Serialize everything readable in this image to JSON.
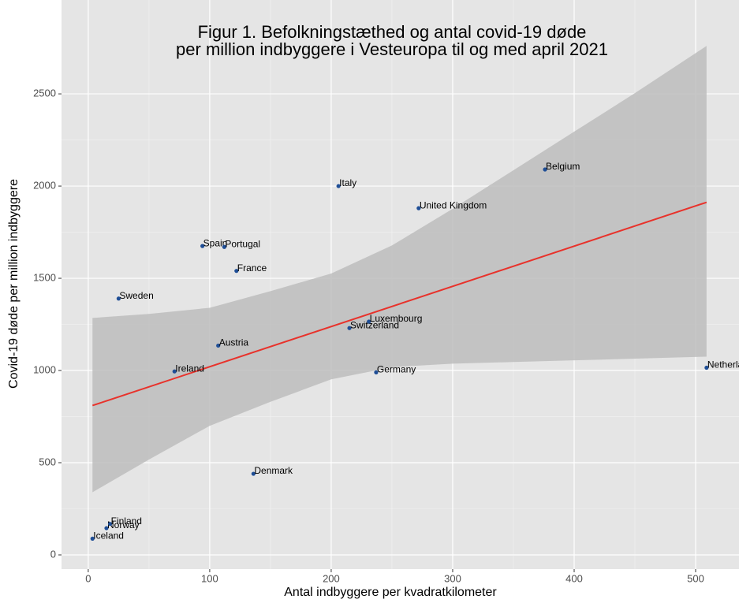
{
  "chart_data": {
    "type": "scatter",
    "title": [
      "Figur 1. Befolkningstæthed og antal covid-19 døde",
      "per million indbyggere i Vesteuropa til og med april 2021"
    ],
    "xlabel": "Antal indbyggere per kvadratkilometer",
    "ylabel": "Covid-19 døde per million indbyggere",
    "xlim": [
      -22,
      535.7
    ],
    "ylim": [
      -77,
      3009
    ],
    "xticks": [
      0,
      100,
      200,
      300,
      400,
      500
    ],
    "yticks": [
      0,
      500,
      1000,
      1500,
      2000,
      2500
    ],
    "xminor": [
      50,
      150,
      250,
      350,
      450
    ],
    "yminor": [
      250,
      750,
      1250,
      1750,
      2250
    ],
    "grid": true,
    "points": {
      "color": "#1f4e96",
      "labels": [
        "Iceland",
        "Norway",
        "Finland",
        "Denmark",
        "Ireland",
        "Austria",
        "Sweden",
        "Spain",
        "Portugal",
        "France",
        "Italy",
        "Switzerland",
        "Luxembourg",
        "Germany",
        "United Kingdom",
        "Belgium",
        "Netherlands"
      ],
      "x": [
        3.5,
        15,
        18,
        136,
        71,
        107,
        25,
        94,
        112,
        122,
        206,
        215,
        231,
        237,
        272,
        376,
        509
      ],
      "y": [
        88,
        145,
        168,
        440,
        995,
        1135,
        1390,
        1675,
        1670,
        1540,
        2000,
        1230,
        1265,
        990,
        1880,
        2090,
        1015
      ]
    },
    "fit_line": {
      "color": "#e8322b",
      "x": [
        3.5,
        509
      ],
      "y": [
        810,
        1912
      ]
    },
    "band": {
      "color": "#bdbdbd",
      "x": [
        3.5,
        50,
        100,
        150,
        200,
        250,
        300,
        350,
        400,
        450,
        509
      ],
      "lower": [
        340,
        517,
        700,
        830,
        952,
        1018,
        1037,
        1046,
        1055,
        1064,
        1075
      ],
      "upper": [
        1285,
        1307,
        1340,
        1430,
        1526,
        1678,
        1877,
        2086,
        2295,
        2504,
        2760
      ]
    }
  }
}
